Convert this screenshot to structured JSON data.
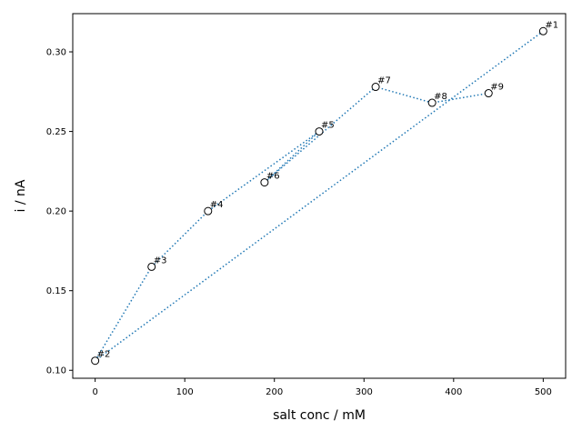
{
  "chart_data": {
    "type": "scatter",
    "title": "",
    "xlabel": "salt conc / mM",
    "ylabel": "i / nA",
    "xlim": [
      -25,
      525
    ],
    "ylim": [
      0.095,
      0.324
    ],
    "x_ticks": [
      0,
      100,
      200,
      300,
      400,
      500
    ],
    "x_tick_labels": [
      "0",
      "100",
      "200",
      "300",
      "400",
      "500"
    ],
    "y_ticks": [
      0.1,
      0.15,
      0.2,
      0.25,
      0.3
    ],
    "y_tick_labels": [
      "0.10",
      "0.15",
      "0.20",
      "0.25",
      "0.30"
    ],
    "grid": false,
    "legend": "none",
    "series": [
      {
        "line_style": "dotted",
        "line_color": "#1f77b4",
        "marker": "open-circle",
        "points": [
          {
            "label": "#1",
            "x": 500,
            "y": 0.313
          },
          {
            "label": "#2",
            "x": 0,
            "y": 0.106
          },
          {
            "label": "#3",
            "x": 63,
            "y": 0.165
          },
          {
            "label": "#4",
            "x": 126,
            "y": 0.2
          },
          {
            "label": "#5",
            "x": 250,
            "y": 0.25
          },
          {
            "label": "#6",
            "x": 189,
            "y": 0.218
          },
          {
            "label": "#7",
            "x": 313,
            "y": 0.278
          },
          {
            "label": "#8",
            "x": 376,
            "y": 0.268
          },
          {
            "label": "#9",
            "x": 439,
            "y": 0.274
          }
        ]
      }
    ]
  }
}
